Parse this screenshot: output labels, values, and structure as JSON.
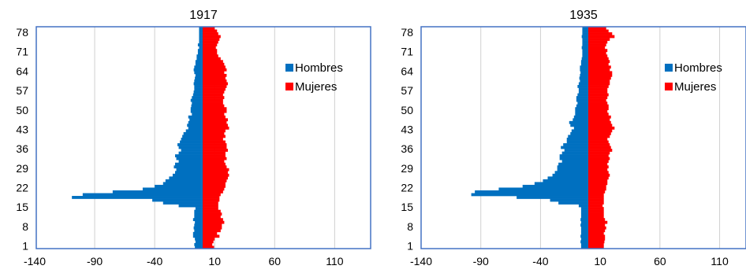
{
  "chart_data": [
    {
      "type": "bar",
      "orientation": "horizontal",
      "layout": "population-pyramid",
      "title": "1917",
      "xlim": [
        -140,
        140
      ],
      "xticks": [
        -140,
        -90,
        -40,
        10,
        60,
        110
      ],
      "ylim": [
        0,
        80
      ],
      "yticks": [
        1,
        8,
        15,
        22,
        29,
        36,
        43,
        50,
        57,
        64,
        71,
        78
      ],
      "grid": "vertical",
      "legend_position": "right",
      "y": [
        0,
        1,
        2,
        3,
        4,
        5,
        6,
        7,
        8,
        9,
        10,
        11,
        12,
        13,
        14,
        15,
        16,
        17,
        18,
        19,
        20,
        21,
        22,
        23,
        24,
        25,
        26,
        27,
        28,
        29,
        30,
        31,
        32,
        33,
        34,
        35,
        36,
        37,
        38,
        39,
        40,
        41,
        42,
        43,
        44,
        45,
        46,
        47,
        48,
        49,
        50,
        51,
        52,
        53,
        54,
        55,
        56,
        57,
        58,
        59,
        60,
        61,
        62,
        63,
        64,
        65,
        66,
        67,
        68,
        69,
        70,
        71,
        72,
        73,
        74,
        75,
        76,
        77,
        78,
        79
      ],
      "series": [
        {
          "name": "Hombres",
          "color": "#0070C0",
          "values": [
            -6.5,
            -7,
            -6,
            -6.5,
            -8,
            -8,
            -7,
            -7.5,
            -7,
            -6.5,
            -8,
            -7,
            -7,
            -7,
            -6,
            -20,
            -33,
            -42,
            -109,
            -100,
            -75,
            -50,
            -40,
            -33,
            -31,
            -28,
            -25,
            -23,
            -22,
            -24,
            -23,
            -20,
            -22,
            -23,
            -20,
            -18,
            -20,
            -21,
            -19,
            -18,
            -17,
            -16,
            -14,
            -12,
            -13,
            -12,
            -11,
            -12,
            -9,
            -10,
            -10,
            -9.5,
            -9,
            -10,
            -9,
            -8,
            -7.5,
            -7,
            -7,
            -7.5,
            -7,
            -6.5,
            -6,
            -7,
            -7.5,
            -7,
            -6,
            -6,
            -5,
            -5,
            -4,
            -4,
            -3,
            -4,
            -3,
            -3,
            -3,
            -3,
            -3,
            -3
          ]
        },
        {
          "name": "Mujeres",
          "color": "#FF0000",
          "values": [
            9.5,
            8,
            9,
            10,
            14,
            12,
            15,
            16,
            16,
            18,
            17,
            15,
            16,
            15,
            13,
            13,
            13,
            14,
            14,
            15,
            17,
            18,
            19,
            19,
            20,
            21,
            22,
            21,
            22,
            20,
            19,
            18,
            20,
            19,
            19,
            21,
            20,
            20,
            19,
            17,
            19,
            18,
            19,
            22,
            21,
            20,
            21,
            19,
            18,
            20,
            20,
            18,
            17,
            17,
            18,
            17,
            18,
            19,
            20,
            21,
            20,
            19,
            20,
            18,
            20,
            19,
            18,
            17,
            15,
            13,
            12,
            12,
            11,
            12,
            13,
            14,
            15,
            13,
            12,
            10
          ]
        }
      ]
    },
    {
      "type": "bar",
      "orientation": "horizontal",
      "layout": "population-pyramid",
      "title": "1935",
      "xlim": [
        -140,
        140
      ],
      "xticks": [
        -140,
        -90,
        -40,
        10,
        60,
        110
      ],
      "ylim": [
        0,
        80
      ],
      "yticks": [
        1,
        8,
        15,
        22,
        29,
        36,
        43,
        50,
        57,
        64,
        71,
        78
      ],
      "grid": "vertical",
      "legend_position": "right",
      "y": [
        0,
        1,
        2,
        3,
        4,
        5,
        6,
        7,
        8,
        9,
        10,
        11,
        12,
        13,
        14,
        15,
        16,
        17,
        18,
        19,
        20,
        21,
        22,
        23,
        24,
        25,
        26,
        27,
        28,
        29,
        30,
        31,
        32,
        33,
        34,
        35,
        36,
        37,
        38,
        39,
        40,
        41,
        42,
        43,
        44,
        45,
        46,
        47,
        48,
        49,
        50,
        51,
        52,
        53,
        54,
        55,
        56,
        57,
        58,
        59,
        60,
        61,
        62,
        63,
        64,
        65,
        66,
        67,
        68,
        69,
        70,
        71,
        72,
        73,
        74,
        75,
        76,
        77,
        78,
        79
      ],
      "series": [
        {
          "name": "Hombres",
          "color": "#0070C0",
          "values": [
            -6,
            -6,
            -6.5,
            -6,
            -6.5,
            -6,
            -6,
            -6,
            -6.5,
            -6,
            -6.5,
            -6,
            -6,
            -6,
            -6,
            -8,
            -25,
            -32,
            -60,
            -98,
            -95,
            -75,
            -55,
            -45,
            -38,
            -34,
            -30,
            -28,
            -26,
            -26,
            -25,
            -22,
            -24,
            -24,
            -22,
            -20,
            -23,
            -21,
            -18,
            -18,
            -17,
            -15,
            -14,
            -12,
            -15,
            -16,
            -13,
            -12,
            -11,
            -11,
            -11,
            -10,
            -9,
            -10,
            -10,
            -9,
            -8,
            -8,
            -9,
            -8,
            -7,
            -7.5,
            -7,
            -6.5,
            -7,
            -7,
            -6,
            -6,
            -5.5,
            -5,
            -5,
            -5,
            -5.5,
            -5,
            -5,
            -5,
            -5.5,
            -5,
            -5,
            -5
          ]
        },
        {
          "name": "Mujeres",
          "color": "#FF0000",
          "values": [
            13,
            13,
            13.5,
            14,
            14,
            13,
            14,
            15,
            14,
            16,
            14,
            13,
            13,
            13,
            13,
            12,
            13,
            13,
            13,
            13,
            14,
            15,
            15,
            16,
            16,
            17,
            18,
            17,
            16,
            17,
            16,
            17,
            18,
            17,
            18,
            20,
            19,
            18,
            17,
            16,
            18,
            19,
            20,
            22,
            20,
            19,
            18,
            19,
            17,
            16,
            17,
            17,
            16,
            15,
            16,
            17,
            16,
            16,
            17,
            18,
            18,
            19,
            20,
            20,
            18,
            19,
            17,
            18,
            17,
            16,
            15,
            16,
            14,
            15,
            16,
            18,
            22,
            20,
            17,
            15
          ]
        }
      ]
    }
  ]
}
